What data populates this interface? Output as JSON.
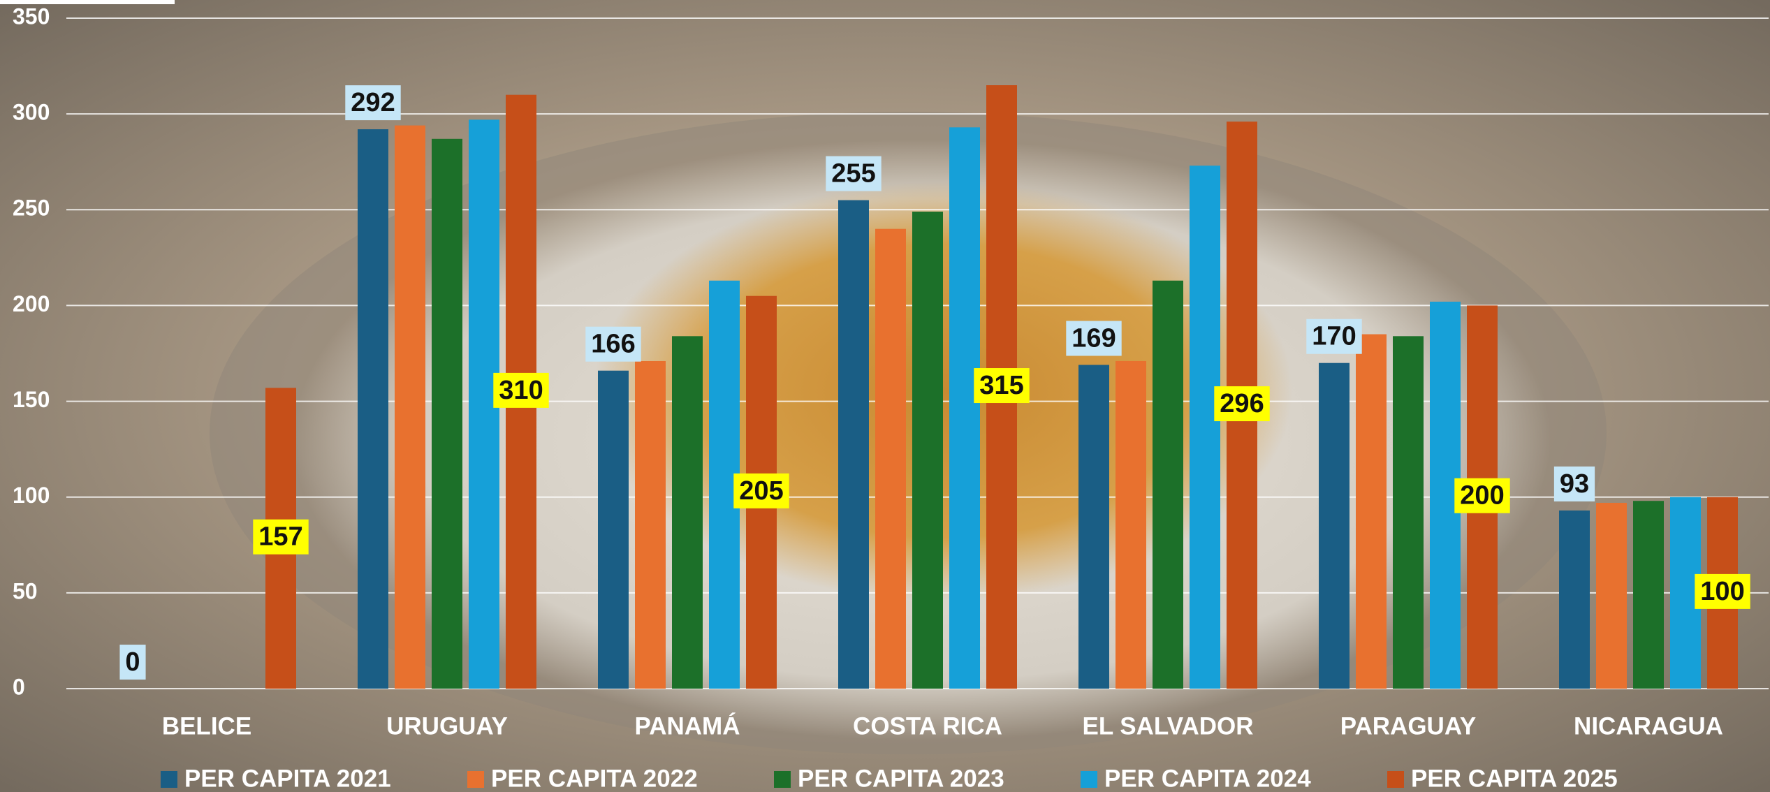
{
  "chart_data": {
    "type": "bar",
    "categories": [
      "BELICE",
      "URUGUAY",
      "PANAMÁ",
      "COSTA RICA",
      "EL SALVADOR",
      "PARAGUAY",
      "NICARAGUA"
    ],
    "series": [
      {
        "name": "PER CAPITA 2021",
        "color": "#1a5e85",
        "values": [
          0,
          292,
          166,
          255,
          169,
          170,
          93
        ],
        "label_color": "#c5e6f7"
      },
      {
        "name": "PER CAPITA 2022",
        "color": "#e8712f",
        "values": [
          null,
          294,
          171,
          240,
          171,
          185,
          97
        ]
      },
      {
        "name": "PER CAPITA 2023",
        "color": "#1c7029",
        "values": [
          null,
          287,
          184,
          249,
          213,
          184,
          98
        ]
      },
      {
        "name": "PER CAPITA 2024",
        "color": "#16a0d8",
        "values": [
          null,
          297,
          213,
          293,
          273,
          202,
          100
        ]
      },
      {
        "name": "PER CAPITA 2025",
        "color": "#c64f19",
        "values": [
          157,
          310,
          205,
          315,
          296,
          200,
          100
        ],
        "label_color": "#ffff00"
      }
    ],
    "ylim": [
      0,
      350
    ],
    "yticks": [
      0,
      50,
      100,
      150,
      200,
      250,
      300,
      350
    ],
    "grid": true
  }
}
